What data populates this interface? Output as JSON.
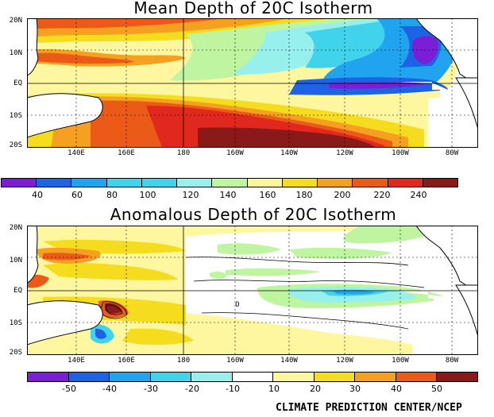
{
  "colors": {
    "land": "#ffffff",
    "coast": "#000000",
    "purple": "#7a1fd6",
    "blue1": "#1e63e6",
    "blue2": "#20a4f0",
    "cyan1": "#41d3ec",
    "cyan2": "#97f0ec",
    "green": "#bff5a0",
    "pale_yellow": "#fff7a0",
    "yellow": "#f5dc1e",
    "orange": "#f5a020",
    "red_orange": "#ec5a18",
    "red": "#e0281e",
    "dark_red": "#8a1a1a"
  },
  "top_panel": {
    "title": "Mean Depth of 20C Isotherm",
    "lat_labels": [
      "20N",
      "10N",
      "EQ",
      "10S",
      "20S"
    ],
    "lon_labels": [
      "140E",
      "160E",
      "180",
      "160W",
      "140W",
      "120W",
      "100W",
      "80W"
    ],
    "colorbar": {
      "labels": [
        "40",
        "60",
        "80",
        "100",
        "120",
        "140",
        "160",
        "180",
        "200",
        "220",
        "240"
      ],
      "colors": [
        "#7a1fd6",
        "#1e63e6",
        "#20a4f0",
        "#41d3ec",
        "#41d3ec",
        "#97f0ec",
        "#bff5a0",
        "#fff7a0",
        "#f5dc1e",
        "#f5a020",
        "#ec5a18",
        "#e0281e",
        "#8a1a1a"
      ]
    }
  },
  "bottom_panel": {
    "title": "Anomalous Depth of 20C Isotherm",
    "lat_labels": [
      "20N",
      "10N",
      "EQ",
      "10S",
      "20S"
    ],
    "lon_labels": [
      "140E",
      "160E",
      "180",
      "160W",
      "140W",
      "120W",
      "100W",
      "80W"
    ],
    "contour_label": "0",
    "colorbar": {
      "labels": [
        "-50",
        "-40",
        "-30",
        "-20",
        "-10",
        "10",
        "20",
        "30",
        "40",
        "50"
      ],
      "colors": [
        "#7a1fd6",
        "#1e63e6",
        "#20a4f0",
        "#41d3ec",
        "#97f0ec",
        "#ffffff",
        "#fff7a0",
        "#f5dc1e",
        "#f5a020",
        "#ec5a18",
        "#8a1a1a"
      ]
    }
  },
  "credit": "CLIMATE PREDICTION CENTER/NCEP"
}
